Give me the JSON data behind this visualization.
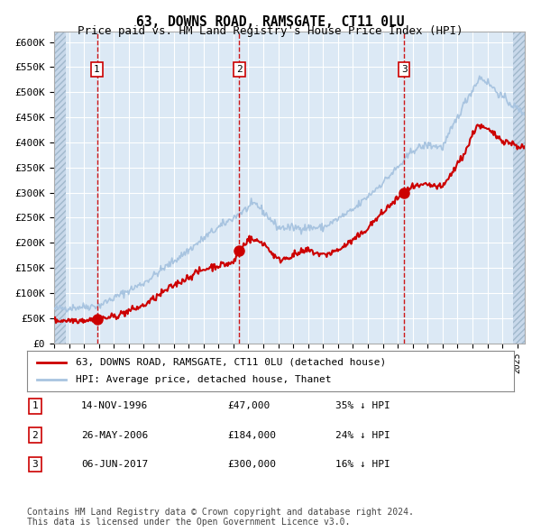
{
  "title": "63, DOWNS ROAD, RAMSGATE, CT11 0LU",
  "subtitle": "Price paid vs. HM Land Registry's House Price Index (HPI)",
  "hpi_color": "#a8c4e0",
  "price_color": "#cc0000",
  "purchase_marker_color": "#cc0000",
  "dashed_line_color": "#cc0000",
  "bg_color": "#dce9f5",
  "plot_bg_color": "#dce9f5",
  "grid_color": "#ffffff",
  "hatch_color": "#b0c8e0",
  "ylabel_color": "#000000",
  "ylim": [
    0,
    620000
  ],
  "yticks": [
    0,
    50000,
    100000,
    150000,
    200000,
    250000,
    300000,
    350000,
    400000,
    450000,
    500000,
    550000,
    600000
  ],
  "ytick_labels": [
    "£0",
    "£50K",
    "£100K",
    "£150K",
    "£200K",
    "£250K",
    "£300K",
    "£350K",
    "£400K",
    "£450K",
    "£500K",
    "£550K",
    "£600K"
  ],
  "xlim_start": 1994.0,
  "xlim_end": 2025.5,
  "xtick_years": [
    1994,
    1995,
    1996,
    1997,
    1998,
    1999,
    2000,
    2001,
    2002,
    2003,
    2004,
    2005,
    2006,
    2007,
    2008,
    2009,
    2010,
    2011,
    2012,
    2013,
    2014,
    2015,
    2016,
    2017,
    2018,
    2019,
    2020,
    2021,
    2022,
    2023,
    2024,
    2025
  ],
  "purchase_dates": [
    1996.87,
    2006.4,
    2017.43
  ],
  "purchase_prices": [
    47000,
    184000,
    300000
  ],
  "purchase_labels": [
    "1",
    "2",
    "3"
  ],
  "legend_line1": "63, DOWNS ROAD, RAMSGATE, CT11 0LU (detached house)",
  "legend_line2": "HPI: Average price, detached house, Thanet",
  "table_rows": [
    [
      "1",
      "14-NOV-1996",
      "£47,000",
      "35% ↓ HPI"
    ],
    [
      "2",
      "26-MAY-2006",
      "£184,000",
      "24% ↓ HPI"
    ],
    [
      "3",
      "06-JUN-2017",
      "£300,000",
      "16% ↓ HPI"
    ]
  ],
  "footer_line1": "Contains HM Land Registry data © Crown copyright and database right 2024.",
  "footer_line2": "This data is licensed under the Open Government Licence v3.0."
}
